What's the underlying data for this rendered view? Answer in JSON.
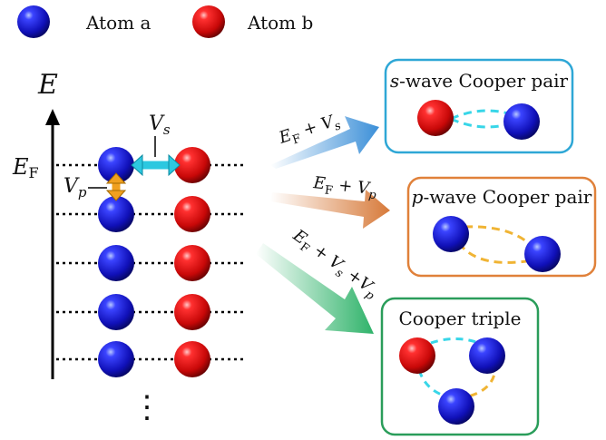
{
  "legend": {
    "atom_a": {
      "label": "Atom a",
      "color": "#1a1ad6"
    },
    "atom_b": {
      "label": "Atom b",
      "color": "#e01010"
    }
  },
  "axis": {
    "energy_label": "E",
    "fermi_label": "E",
    "fermi_sub": "F"
  },
  "couplings": {
    "vs_main": "V",
    "vs_sub": "s",
    "vp_main": "V",
    "vp_sub": "p"
  },
  "levels": {
    "count": 5,
    "continuation": "⋮"
  },
  "arrows": {
    "s_wave": {
      "main": "E",
      "sub": "F",
      "rest": " + V",
      "rest_sub": "s",
      "color": "#3b8fd8"
    },
    "p_wave": {
      "main": "E",
      "sub": "F",
      "rest": " + V",
      "rest_sub": "p",
      "color": "#d77a3a"
    },
    "triple": {
      "main": "E",
      "sub": "F",
      "rest": " + V",
      "rest_sub": "s",
      "rest2": " +V",
      "rest2_sub": "p",
      "color": "#2fb36a"
    }
  },
  "boxes": {
    "s_wave": {
      "title_italic": "s",
      "title_rest": "-wave Cooper pair",
      "border": "#2ea7d6"
    },
    "p_wave": {
      "title_italic": "p",
      "title_rest": "-wave Cooper pair",
      "border": "#e0813a"
    },
    "triple": {
      "title": "Cooper triple",
      "border": "#2a9d5a"
    }
  },
  "bond_colors": {
    "s": "#38d6e8",
    "p": "#f0b434"
  }
}
